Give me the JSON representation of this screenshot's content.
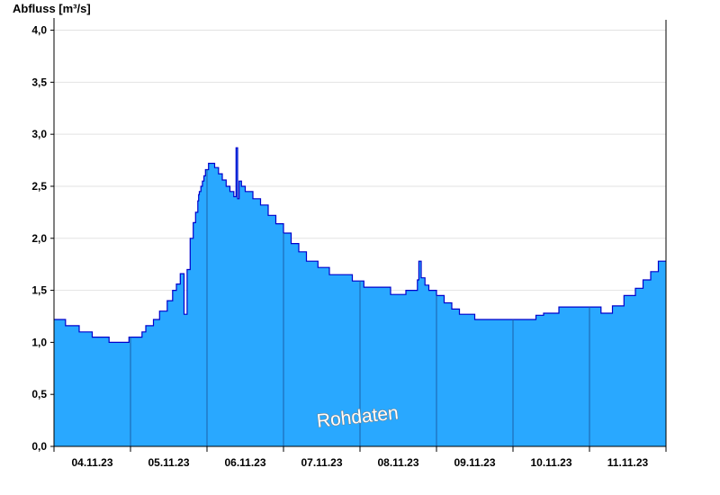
{
  "chart_data": {
    "type": "area",
    "title": "",
    "ylabel": "Abfluss [m³/s]",
    "xlabel": "",
    "ylim": [
      0,
      4.1
    ],
    "yticks": [
      "0,0",
      "0,5",
      "1,0",
      "1,5",
      "2,0",
      "2,5",
      "3,0",
      "3,5",
      "4,0"
    ],
    "ytick_values": [
      0,
      0.5,
      1.0,
      1.5,
      2.0,
      2.5,
      3.0,
      3.5,
      4.0
    ],
    "xticks": [
      "04.11.23",
      "05.11.23",
      "06.11.23",
      "07.11.23",
      "08.11.23",
      "09.11.23",
      "10.11.23",
      "11.11.23"
    ],
    "xlim_days": [
      0,
      8
    ],
    "grid": true,
    "watermark": "Rohdaten",
    "colors": {
      "fill": "#29a8ff",
      "line": "#0000cc",
      "grid": "#e2e2e2",
      "day_lines": "#1a5fa8"
    },
    "series": [
      {
        "x": [
          0,
          0.12,
          0.15,
          0.3,
          0.33,
          0.48,
          0.5,
          0.7,
          0.72,
          0.95,
          0.98,
          1.15,
          1.2,
          1.3,
          1.38,
          1.48,
          1.55,
          1.6,
          1.65,
          1.7,
          1.74,
          1.78,
          1.82,
          1.85,
          1.88,
          1.89,
          1.9,
          1.92,
          1.94,
          1.96,
          1.98,
          2.02,
          2.06,
          2.1,
          2.15,
          2.2,
          2.25,
          2.3,
          2.35,
          2.38,
          2.4,
          2.42,
          2.45,
          2.5,
          2.6,
          2.7,
          2.8,
          2.9,
          3.0,
          3.1,
          3.2,
          3.3,
          3.45,
          3.6,
          3.9,
          4.05,
          4.4,
          4.6,
          4.75,
          4.77,
          4.8,
          4.85,
          4.9,
          5.0,
          5.1,
          5.2,
          5.3,
          5.5,
          5.9,
          6.2,
          6.3,
          6.4,
          6.6,
          6.9,
          7.15,
          7.3,
          7.45,
          7.6,
          7.7,
          7.8,
          7.9,
          8.0
        ],
        "y": [
          1.22,
          1.22,
          1.16,
          1.16,
          1.1,
          1.1,
          1.05,
          1.05,
          1.0,
          1.0,
          1.05,
          1.1,
          1.16,
          1.22,
          1.3,
          1.4,
          1.5,
          1.56,
          1.66,
          1.27,
          1.7,
          2.0,
          2.15,
          2.25,
          2.36,
          2.42,
          2.45,
          2.5,
          2.55,
          2.6,
          2.66,
          2.72,
          2.72,
          2.68,
          2.62,
          2.56,
          2.5,
          2.45,
          2.4,
          2.87,
          2.38,
          2.55,
          2.5,
          2.45,
          2.38,
          2.32,
          2.22,
          2.14,
          2.05,
          1.95,
          1.87,
          1.78,
          1.72,
          1.65,
          1.59,
          1.53,
          1.46,
          1.5,
          1.6,
          1.78,
          1.62,
          1.55,
          1.5,
          1.45,
          1.38,
          1.32,
          1.27,
          1.22,
          1.22,
          1.22,
          1.26,
          1.28,
          1.34,
          1.34,
          1.28,
          1.35,
          1.45,
          1.52,
          1.6,
          1.68,
          1.78,
          1.78
        ]
      }
    ]
  }
}
